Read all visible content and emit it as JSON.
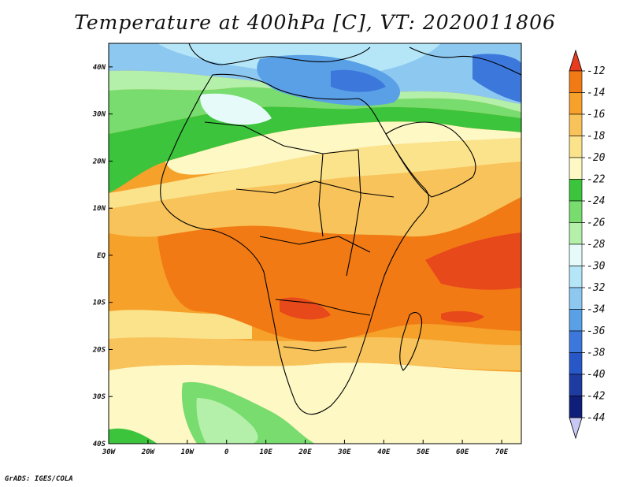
{
  "title": "Temperature at 400hPa [C], VT: 2020011806",
  "credit": "GrADS: IGES/COLA",
  "map": {
    "lon_range": [
      -30,
      75
    ],
    "lat_range": [
      -40,
      45
    ],
    "lon_ticks": [
      {
        "value": -30,
        "label": "30W"
      },
      {
        "value": -20,
        "label": "20W"
      },
      {
        "value": -10,
        "label": "10W"
      },
      {
        "value": 0,
        "label": "0"
      },
      {
        "value": 10,
        "label": "10E"
      },
      {
        "value": 20,
        "label": "20E"
      },
      {
        "value": 30,
        "label": "30E"
      },
      {
        "value": 40,
        "label": "40E"
      },
      {
        "value": 50,
        "label": "50E"
      },
      {
        "value": 60,
        "label": "60E"
      },
      {
        "value": 70,
        "label": "70E"
      }
    ],
    "lat_ticks": [
      {
        "value": 40,
        "label": "40N"
      },
      {
        "value": 30,
        "label": "30N"
      },
      {
        "value": 20,
        "label": "20N"
      },
      {
        "value": 10,
        "label": "10N"
      },
      {
        "value": 0,
        "label": "EQ"
      },
      {
        "value": -10,
        "label": "10S"
      },
      {
        "value": -20,
        "label": "20S"
      },
      {
        "value": -30,
        "label": "30S"
      },
      {
        "value": -40,
        "label": "40S"
      }
    ]
  },
  "colorbar": {
    "labels": [
      "-12",
      "-14",
      "-16",
      "-18",
      "-20",
      "-22",
      "-24",
      "-26",
      "-28",
      "-30",
      "-32",
      "-34",
      "-36",
      "-38",
      "-40",
      "-42",
      "-44"
    ],
    "colors": [
      "#e8491b",
      "#f27a14",
      "#f6a12a",
      "#f8c35a",
      "#fbe38c",
      "#fdf8c4",
      "#3cc43c",
      "#78dc6e",
      "#b4f0aa",
      "#e6fafa",
      "#b4e6f8",
      "#8cc8f0",
      "#5aa0e6",
      "#3c78dc",
      "#2858c8",
      "#1e3ca0",
      "#0f1e78"
    ],
    "top_arrow_color": "#e83c1e",
    "bottom_arrow_color": "#c8c8f4"
  }
}
